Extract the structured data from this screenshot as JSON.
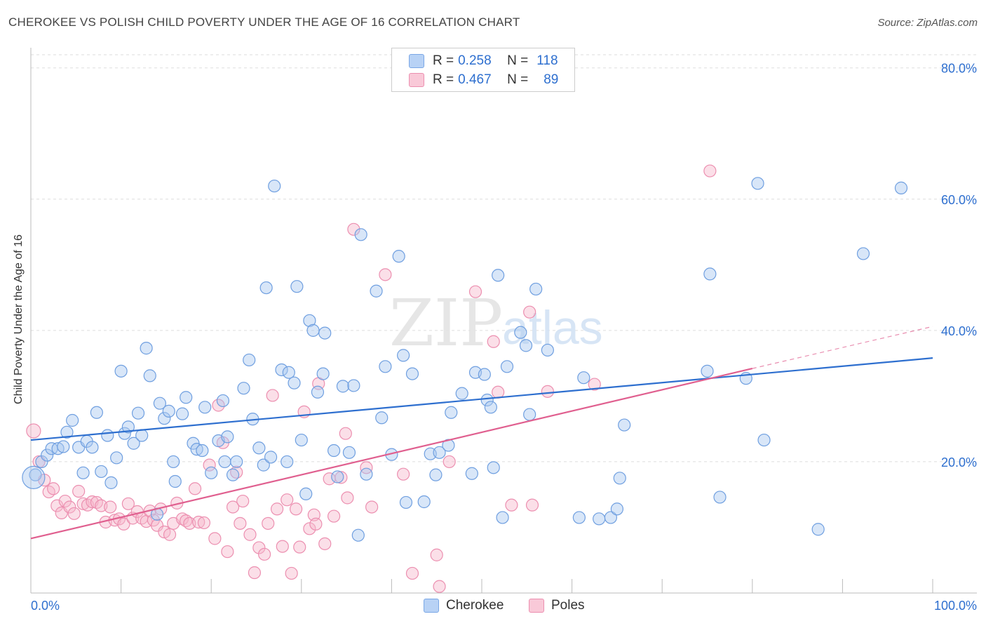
{
  "title": "CHEROKEE VS POLISH CHILD POVERTY UNDER THE AGE OF 16 CORRELATION CHART",
  "source": "Source: ZipAtlas.com",
  "watermark": {
    "zip": "ZIP",
    "atlas": "atlas"
  },
  "legend": {
    "rows": [
      {
        "r_label": "R =",
        "r_value": "0.258",
        "n_label": "N =",
        "n_value": "118"
      },
      {
        "r_label": "R =",
        "r_value": "0.467",
        "n_label": "N =",
        "n_value": "89"
      }
    ]
  },
  "bottom_legend": {
    "cherokee": "Cherokee",
    "poles": "Poles"
  },
  "chart_data": {
    "type": "scatter",
    "title": "CHEROKEE VS POLISH CHILD POVERTY UNDER THE AGE OF 16 CORRELATION CHART",
    "xlabel": "",
    "ylabel": "Child Poverty Under the Age of 16",
    "xlim": [
      0,
      100
    ],
    "ylim": [
      0,
      82
    ],
    "x_tick_labels": [
      "0.0%",
      "100.0%"
    ],
    "y_ticks": [
      20,
      40,
      60,
      80
    ],
    "y_tick_labels": [
      "20.0%",
      "40.0%",
      "60.0%",
      "80.0%"
    ],
    "grid": true,
    "legend_position": "top-center",
    "colors": {
      "cherokee": "#2e6fcf",
      "poles": "#e05f8f",
      "cherokee_fill": "#a9c8f0",
      "poles_fill": "#f7b9cd"
    },
    "series": [
      {
        "name": "Cherokee",
        "r": 0.258,
        "n": 118,
        "trend": {
          "x": [
            0,
            100
          ],
          "y": [
            23.3,
            35.8
          ]
        },
        "points": [
          [
            0.5,
            18
          ],
          [
            1.2,
            20
          ],
          [
            1.8,
            21
          ],
          [
            2.3,
            22
          ],
          [
            3,
            22
          ],
          [
            3.6,
            22.3
          ],
          [
            4,
            24.5
          ],
          [
            4.6,
            26.3
          ],
          [
            5.3,
            22.2
          ],
          [
            5.8,
            18.3
          ],
          [
            6.2,
            23.1
          ],
          [
            6.8,
            22.2
          ],
          [
            7.3,
            27.5
          ],
          [
            7.8,
            18.5
          ],
          [
            8.5,
            24
          ],
          [
            8.9,
            16.8
          ],
          [
            9.5,
            20.6
          ],
          [
            10,
            33.8
          ],
          [
            10.4,
            24.3
          ],
          [
            10.8,
            25.3
          ],
          [
            11.4,
            22.8
          ],
          [
            11.9,
            27.4
          ],
          [
            12.3,
            24
          ],
          [
            12.8,
            37.3
          ],
          [
            13.2,
            33.1
          ],
          [
            14,
            12
          ],
          [
            14.3,
            28.9
          ],
          [
            14.8,
            26.6
          ],
          [
            15.3,
            27.7
          ],
          [
            15.8,
            20
          ],
          [
            16,
            17
          ],
          [
            16.8,
            27.3
          ],
          [
            17.2,
            29.8
          ],
          [
            18,
            22.8
          ],
          [
            18.4,
            21.9
          ],
          [
            19,
            21.7
          ],
          [
            19.3,
            28.3
          ],
          [
            20,
            18.3
          ],
          [
            20.8,
            23.2
          ],
          [
            21.3,
            29.3
          ],
          [
            21.5,
            20
          ],
          [
            21.8,
            23.8
          ],
          [
            22.4,
            18
          ],
          [
            22.8,
            20
          ],
          [
            23.6,
            31.2
          ],
          [
            24.2,
            35.5
          ],
          [
            24.6,
            26.5
          ],
          [
            25.3,
            22.1
          ],
          [
            25.8,
            19.5
          ],
          [
            26.1,
            46.5
          ],
          [
            26.6,
            20.7
          ],
          [
            27,
            62
          ],
          [
            27.8,
            34
          ],
          [
            28.4,
            20
          ],
          [
            28.6,
            33.6
          ],
          [
            29.2,
            32
          ],
          [
            29.5,
            46.7
          ],
          [
            30,
            23.3
          ],
          [
            30.5,
            15.1
          ],
          [
            30.9,
            41.5
          ],
          [
            31.3,
            40
          ],
          [
            31.8,
            30.6
          ],
          [
            32.4,
            33.4
          ],
          [
            32.6,
            39.6
          ],
          [
            33.6,
            21.7
          ],
          [
            34,
            17.7
          ],
          [
            34.6,
            31.5
          ],
          [
            35.3,
            21.4
          ],
          [
            35.8,
            31.6
          ],
          [
            36.3,
            8.8
          ],
          [
            36.6,
            54.6
          ],
          [
            37.2,
            18.1
          ],
          [
            38.3,
            46
          ],
          [
            38.9,
            26.7
          ],
          [
            39.3,
            34.5
          ],
          [
            40,
            21.1
          ],
          [
            40.8,
            51.3
          ],
          [
            41.3,
            36.2
          ],
          [
            41.6,
            13.8
          ],
          [
            42.3,
            33.4
          ],
          [
            43.6,
            13.9
          ],
          [
            44.3,
            21.2
          ],
          [
            44.9,
            18
          ],
          [
            45.3,
            21.4
          ],
          [
            46.3,
            22.5
          ],
          [
            46.6,
            27.5
          ],
          [
            47.8,
            30.4
          ],
          [
            48.9,
            18.2
          ],
          [
            49.3,
            33.6
          ],
          [
            50.3,
            33.3
          ],
          [
            50.6,
            29.4
          ],
          [
            51,
            28.3
          ],
          [
            51.3,
            19.1
          ],
          [
            51.8,
            48.4
          ],
          [
            52.3,
            11.5
          ],
          [
            52.8,
            34.5
          ],
          [
            54.3,
            39.7
          ],
          [
            54.9,
            37.7
          ],
          [
            55.3,
            27.2
          ],
          [
            56,
            46.3
          ],
          [
            57.3,
            37
          ],
          [
            60.8,
            11.5
          ],
          [
            61.3,
            32.8
          ],
          [
            63,
            11.3
          ],
          [
            64.3,
            11.5
          ],
          [
            65,
            12.8
          ],
          [
            65.3,
            17.5
          ],
          [
            65.8,
            25.6
          ],
          [
            75,
            33.8
          ],
          [
            75.3,
            48.6
          ],
          [
            76.4,
            14.6
          ],
          [
            79.3,
            32.7
          ],
          [
            80.6,
            62.4
          ],
          [
            81.3,
            23.3
          ],
          [
            87.3,
            9.7
          ],
          [
            92.3,
            51.7
          ],
          [
            96.5,
            61.7
          ],
          [
            0.3,
            17.6
          ]
        ]
      },
      {
        "name": "Poles",
        "r": 0.467,
        "n": 89,
        "trend": {
          "x": [
            0,
            80
          ],
          "y": [
            8.3,
            34.2
          ]
        },
        "trend_extension": {
          "x": [
            80,
            100
          ],
          "y": [
            34.2,
            40.6
          ]
        },
        "points": [
          [
            0.3,
            24.7
          ],
          [
            0.9,
            20
          ],
          [
            1.5,
            17.2
          ],
          [
            2,
            15.4
          ],
          [
            2.5,
            15.9
          ],
          [
            2.9,
            13.3
          ],
          [
            3.4,
            12.2
          ],
          [
            3.8,
            14
          ],
          [
            4.3,
            13.1
          ],
          [
            4.8,
            12.1
          ],
          [
            5.3,
            15.5
          ],
          [
            5.8,
            13.6
          ],
          [
            6.3,
            13.4
          ],
          [
            6.8,
            13.9
          ],
          [
            7.3,
            13.8
          ],
          [
            7.8,
            13.3
          ],
          [
            8.3,
            10.8
          ],
          [
            8.8,
            13.1
          ],
          [
            9.3,
            11.1
          ],
          [
            9.8,
            11.3
          ],
          [
            10.3,
            10.5
          ],
          [
            10.8,
            13.6
          ],
          [
            11.3,
            11.4
          ],
          [
            11.8,
            12.4
          ],
          [
            12.3,
            11.4
          ],
          [
            12.8,
            10.9
          ],
          [
            13.2,
            12.5
          ],
          [
            13.6,
            11.1
          ],
          [
            14,
            10.3
          ],
          [
            14.4,
            12.8
          ],
          [
            14.8,
            9.3
          ],
          [
            15.4,
            8.9
          ],
          [
            15.8,
            10.6
          ],
          [
            16.2,
            13.7
          ],
          [
            16.8,
            11.3
          ],
          [
            17.2,
            11
          ],
          [
            17.6,
            10.6
          ],
          [
            18.2,
            15.9
          ],
          [
            18.6,
            10.8
          ],
          [
            19.2,
            10.7
          ],
          [
            19.8,
            19.5
          ],
          [
            20.4,
            8.3
          ],
          [
            20.8,
            28.6
          ],
          [
            21.3,
            22.9
          ],
          [
            21.8,
            6.3
          ],
          [
            22.4,
            13.1
          ],
          [
            22.8,
            18.4
          ],
          [
            23.2,
            10.6
          ],
          [
            23.5,
            14
          ],
          [
            24.3,
            8.9
          ],
          [
            24.8,
            3.1
          ],
          [
            25.3,
            6.9
          ],
          [
            25.9,
            5.9
          ],
          [
            26.3,
            10.6
          ],
          [
            26.8,
            30.1
          ],
          [
            27.3,
            12.8
          ],
          [
            27.9,
            7.1
          ],
          [
            28.4,
            14.2
          ],
          [
            28.9,
            3
          ],
          [
            29.4,
            12.8
          ],
          [
            29.8,
            7
          ],
          [
            30.3,
            27.6
          ],
          [
            30.9,
            9.8
          ],
          [
            31.4,
            11.9
          ],
          [
            31.6,
            10.5
          ],
          [
            31.9,
            31.9
          ],
          [
            32.6,
            7.5
          ],
          [
            33.1,
            17.4
          ],
          [
            33.6,
            11.7
          ],
          [
            34.4,
            17.6
          ],
          [
            34.9,
            24.3
          ],
          [
            35.1,
            14.5
          ],
          [
            35.8,
            55.4
          ],
          [
            37.2,
            19.1
          ],
          [
            37.8,
            13.1
          ],
          [
            39.3,
            48.5
          ],
          [
            41.3,
            18.1
          ],
          [
            42.3,
            3
          ],
          [
            45,
            5.8
          ],
          [
            45.3,
            1
          ],
          [
            46.4,
            20
          ],
          [
            49.3,
            45.9
          ],
          [
            51.3,
            38.3
          ],
          [
            51.8,
            30.6
          ],
          [
            53.3,
            13.4
          ],
          [
            55.3,
            42.8
          ],
          [
            55.6,
            13.4
          ],
          [
            57.3,
            30.7
          ],
          [
            62.5,
            31.8
          ],
          [
            75.3,
            64.3
          ]
        ]
      }
    ]
  }
}
